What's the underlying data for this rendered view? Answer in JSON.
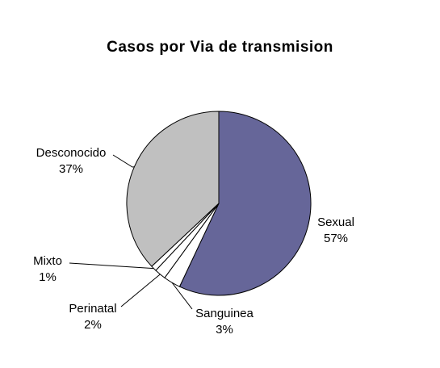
{
  "chart_data": {
    "type": "pie",
    "title": "Casos por Via de transmision",
    "slices": [
      {
        "label": "Sexual",
        "value": 57,
        "value_label": "57%",
        "color": "#666699"
      },
      {
        "label": "Sanguinea",
        "value": 3,
        "value_label": "3%",
        "color": "#ffffff"
      },
      {
        "label": "Perinatal",
        "value": 2,
        "value_label": "2%",
        "color": "#ffffff"
      },
      {
        "label": "Mixto",
        "value": 1,
        "value_label": "1%",
        "color": "#ffffff"
      },
      {
        "label": "Desconocido",
        "value": 37,
        "value_label": "37%",
        "color": "#c0c0c0"
      }
    ]
  }
}
